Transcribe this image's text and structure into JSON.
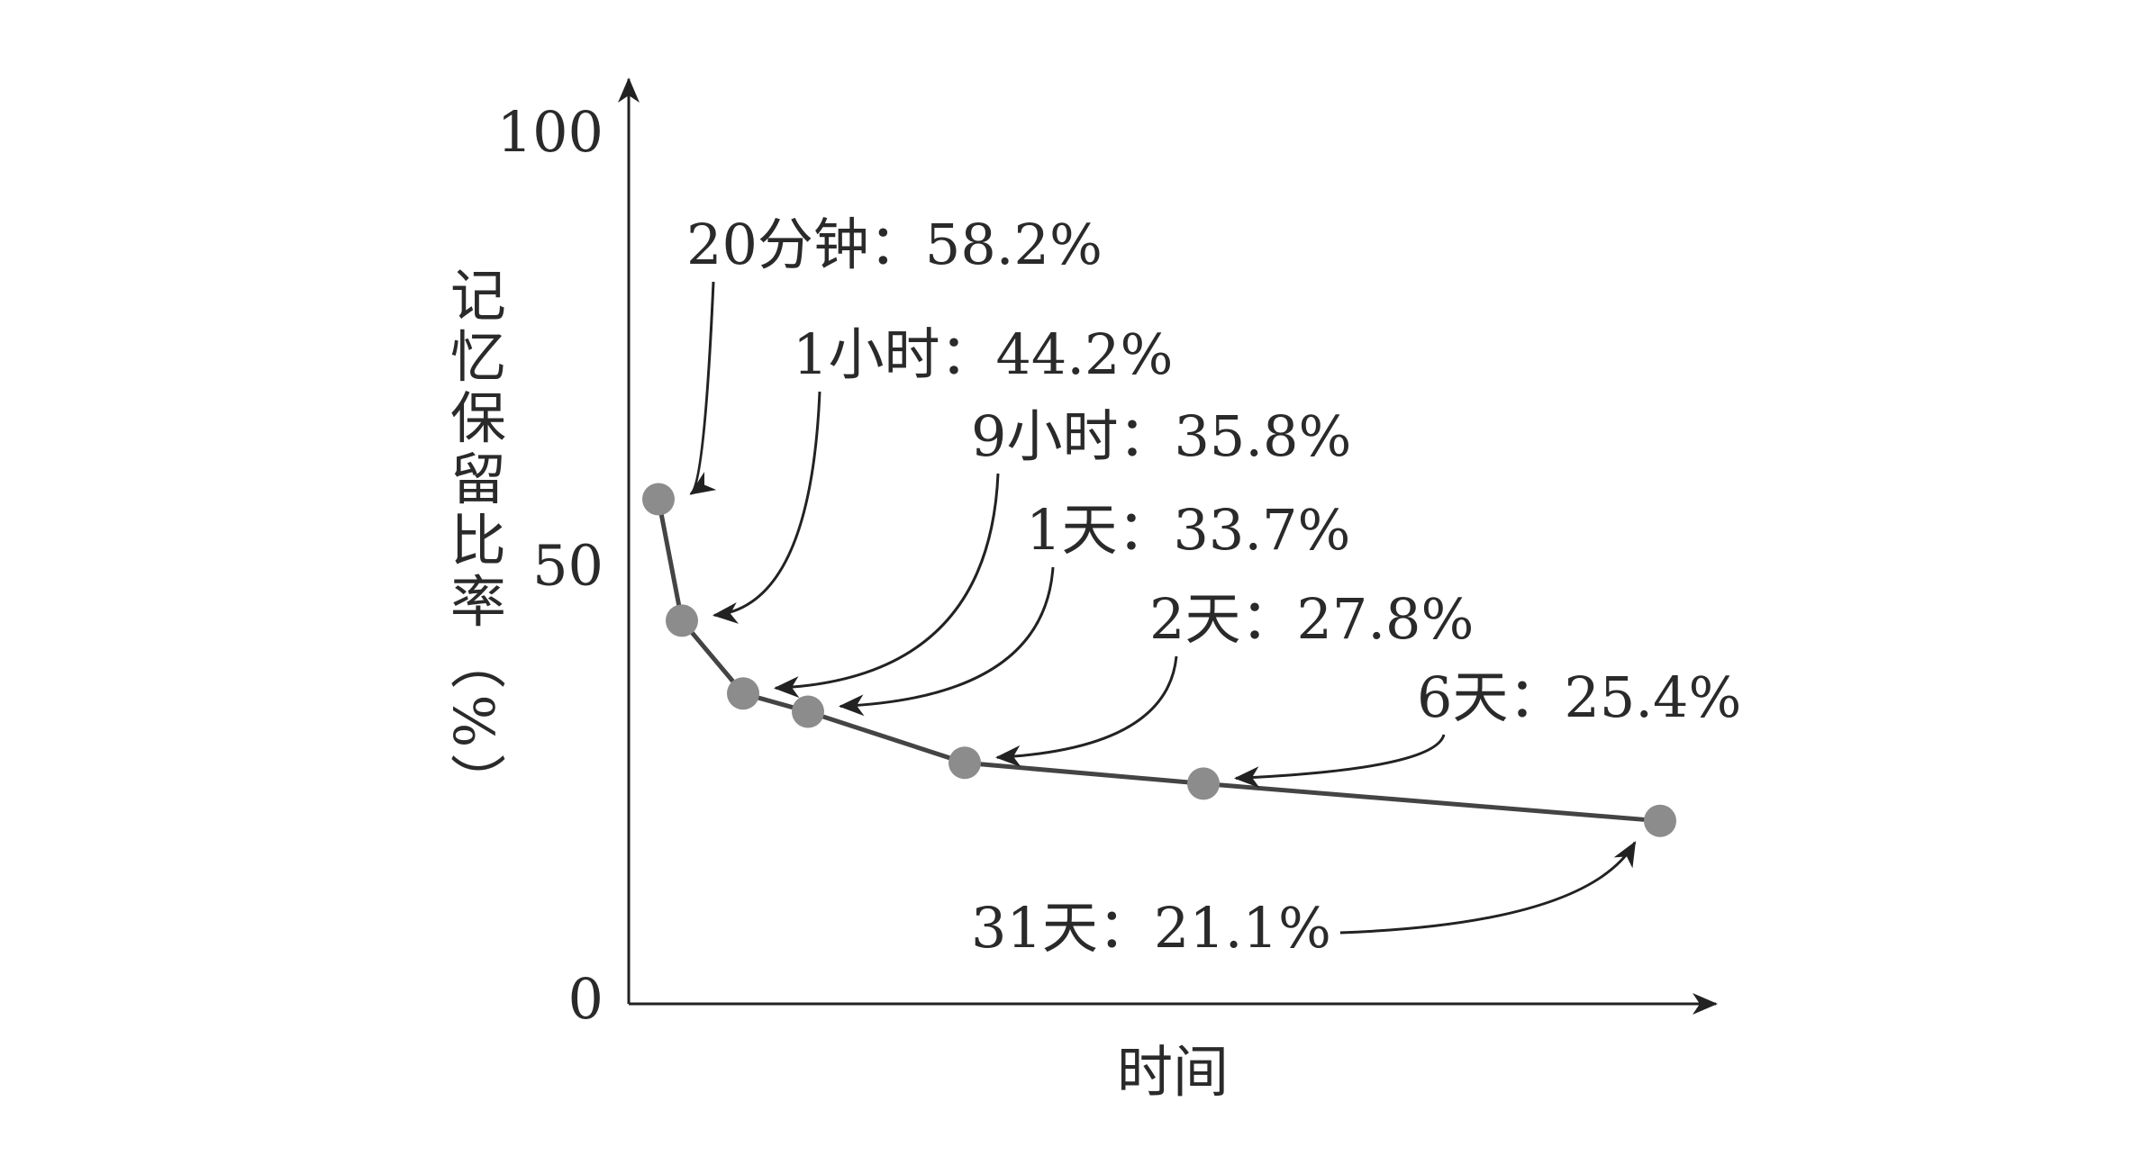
{
  "chart_data": {
    "type": "line",
    "y_label": "记忆保留比率（%）",
    "x_label": "时间",
    "categories": [
      null,
      null,
      null,
      null,
      null,
      null,
      null
    ],
    "values": [
      58.2,
      44.2,
      35.8,
      33.7,
      27.8,
      25.4,
      21.1
    ],
    "annotations": [
      "20分钟：58.2%",
      "1小时：44.2%",
      "9小时：35.8%",
      "1天：33.7%",
      "2天：27.8%",
      "6天：25.4%",
      "31天：21.1%"
    ],
    "color": "#444444",
    "marker_color": "#8c8c8c",
    "ylim": [
      0,
      100
    ],
    "yticks": [
      0,
      50,
      100
    ],
    "grid": false
  }
}
